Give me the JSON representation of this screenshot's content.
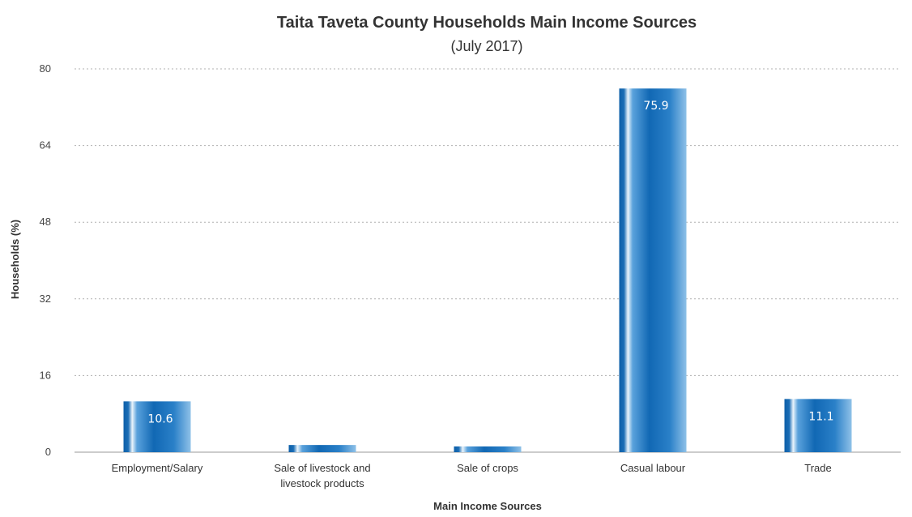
{
  "chart_data": {
    "type": "bar",
    "title": "Taita Taveta County Households Main Income Sources",
    "subtitle": "(July 2017)",
    "xlabel": "Main Income Sources",
    "ylabel": "Households (%)",
    "ylim": [
      0,
      80
    ],
    "yticks": [
      "0",
      "16",
      "32",
      "48",
      "64",
      "80"
    ],
    "grid": true,
    "categories": [
      [
        "Employment/Salary"
      ],
      [
        "Sale of livestock and",
        "livestock products"
      ],
      [
        "Sale of crops"
      ],
      [
        "Casual labour"
      ],
      [
        "Trade"
      ]
    ],
    "values": [
      10.6,
      1.5,
      1.2,
      75.9,
      11.1
    ],
    "data_labels": [
      "10.6",
      "",
      "",
      "75.9",
      "11.1"
    ],
    "colors": {
      "bar_dark": "#0d5fa8",
      "bar_mid": "#2e86cf",
      "bar_light": "#d8ebf8"
    }
  }
}
